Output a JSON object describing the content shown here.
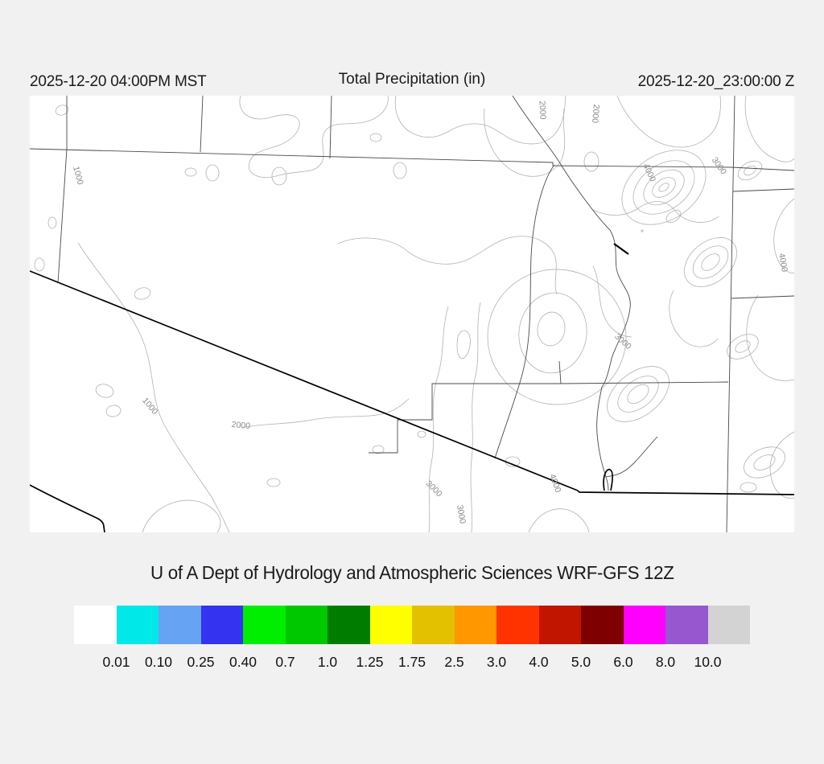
{
  "header": {
    "valid_time": "2025-12-20 04:00PM MST",
    "title": "Total Precipitation (in)",
    "forecast_time": "2025-12-20_23:00:00 Z"
  },
  "map": {
    "region": "Arizona and surrounding states with terrain contours",
    "contour_line_color": "#b2b2b2",
    "county_line_color": "#4a4a4a",
    "state_border_color": "#000000",
    "contour_label_color": "#8a8a8a",
    "terrain_contour_levels_ft": [
      1000,
      2000,
      3000,
      4000
    ],
    "contour_labels": [
      {
        "text": "1000"
      },
      {
        "text": "2000"
      },
      {
        "text": "2000"
      },
      {
        "text": "4000"
      },
      {
        "text": "3000"
      },
      {
        "text": "4000"
      },
      {
        "text": "3000"
      },
      {
        "text": "1000"
      },
      {
        "text": "2000"
      },
      {
        "text": "3000"
      },
      {
        "text": "3000"
      },
      {
        "text": "4000"
      }
    ]
  },
  "footer": {
    "title": "U of A Dept of Hydrology and Atmospheric Sciences WRF-GFS 12Z"
  },
  "colorbar": {
    "units": "in",
    "colors": [
      "#ffffff",
      "#00e8e8",
      "#66a3f2",
      "#3333f0",
      "#00ee00",
      "#00c800",
      "#007d00",
      "#ffff00",
      "#e3c000",
      "#ff9800",
      "#ff3300",
      "#c21500",
      "#7e0000",
      "#ff00ff",
      "#9757ce",
      "#d3d3d3"
    ],
    "tick_labels": [
      "0.01",
      "0.10",
      "0.25",
      "0.40",
      "0.7",
      "1.0",
      "1.25",
      "1.75",
      "2.5",
      "3.0",
      "4.0",
      "5.0",
      "6.0",
      "8.0",
      "10.0"
    ]
  }
}
